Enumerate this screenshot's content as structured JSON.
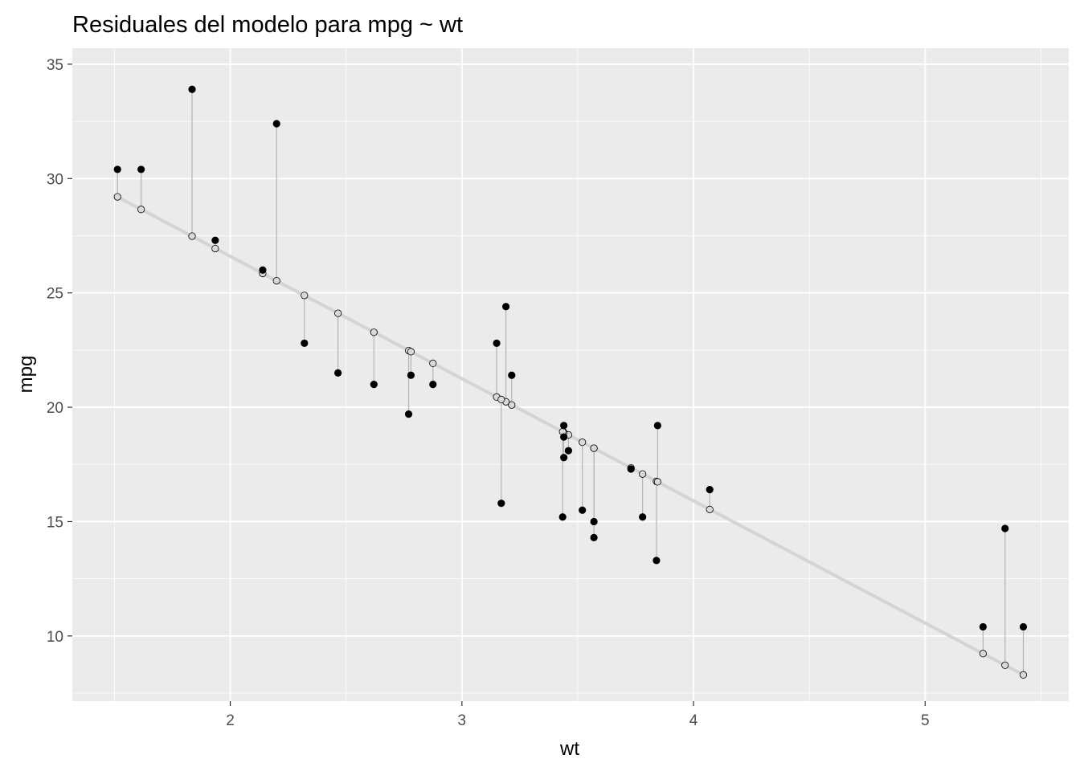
{
  "chart_data": {
    "type": "scatter",
    "title": "Residuales del modelo para mpg ~ wt",
    "xlabel": "wt",
    "ylabel": "mpg",
    "xlim": [
      1.318,
      5.62
    ],
    "ylim": [
      7.15,
      35.7
    ],
    "xticks": [
      2,
      3,
      4,
      5
    ],
    "yticks": [
      10,
      15,
      20,
      25,
      30,
      35
    ],
    "grid": true,
    "legend": "none",
    "regression": {
      "intercept": 37.285,
      "slope": -5.344
    },
    "colors": {
      "panel": "#ebebeb",
      "grid_major": "#ffffff",
      "observed": "#000000",
      "predicted_fill": "#d9d9d9",
      "segment": "#b3b3b3",
      "fit_line": "#d4d4d4"
    },
    "points": [
      {
        "wt": 2.62,
        "mpg": 21.0,
        "pred": 23.28
      },
      {
        "wt": 2.875,
        "mpg": 21.0,
        "pred": 21.92
      },
      {
        "wt": 2.32,
        "mpg": 22.8,
        "pred": 24.89
      },
      {
        "wt": 3.215,
        "mpg": 21.4,
        "pred": 20.1
      },
      {
        "wt": 3.44,
        "mpg": 18.7,
        "pred": 18.9
      },
      {
        "wt": 3.46,
        "mpg": 18.1,
        "pred": 18.79
      },
      {
        "wt": 3.57,
        "mpg": 14.3,
        "pred": 18.21
      },
      {
        "wt": 3.19,
        "mpg": 24.4,
        "pred": 20.24
      },
      {
        "wt": 3.15,
        "mpg": 22.8,
        "pred": 20.45
      },
      {
        "wt": 3.44,
        "mpg": 19.2,
        "pred": 18.9
      },
      {
        "wt": 3.44,
        "mpg": 17.8,
        "pred": 18.9
      },
      {
        "wt": 4.07,
        "mpg": 16.4,
        "pred": 15.53
      },
      {
        "wt": 3.73,
        "mpg": 17.3,
        "pred": 17.35
      },
      {
        "wt": 3.78,
        "mpg": 15.2,
        "pred": 17.08
      },
      {
        "wt": 5.25,
        "mpg": 10.4,
        "pred": 9.23
      },
      {
        "wt": 5.424,
        "mpg": 10.4,
        "pred": 8.3
      },
      {
        "wt": 5.345,
        "mpg": 14.7,
        "pred": 8.72
      },
      {
        "wt": 2.2,
        "mpg": 32.4,
        "pred": 25.53
      },
      {
        "wt": 1.615,
        "mpg": 30.4,
        "pred": 28.65
      },
      {
        "wt": 1.835,
        "mpg": 33.9,
        "pred": 27.48
      },
      {
        "wt": 2.465,
        "mpg": 21.5,
        "pred": 24.11
      },
      {
        "wt": 3.52,
        "mpg": 15.5,
        "pred": 18.47
      },
      {
        "wt": 3.435,
        "mpg": 15.2,
        "pred": 18.93
      },
      {
        "wt": 3.84,
        "mpg": 13.3,
        "pred": 16.76
      },
      {
        "wt": 3.845,
        "mpg": 19.2,
        "pred": 16.74
      },
      {
        "wt": 1.935,
        "mpg": 27.3,
        "pred": 26.94
      },
      {
        "wt": 2.14,
        "mpg": 26.0,
        "pred": 25.85
      },
      {
        "wt": 1.513,
        "mpg": 30.4,
        "pred": 29.2
      },
      {
        "wt": 3.17,
        "mpg": 15.8,
        "pred": 20.34
      },
      {
        "wt": 2.77,
        "mpg": 19.7,
        "pred": 22.48
      },
      {
        "wt": 3.57,
        "mpg": 15.0,
        "pred": 18.21
      },
      {
        "wt": 2.78,
        "mpg": 21.4,
        "pred": 22.43
      }
    ]
  }
}
